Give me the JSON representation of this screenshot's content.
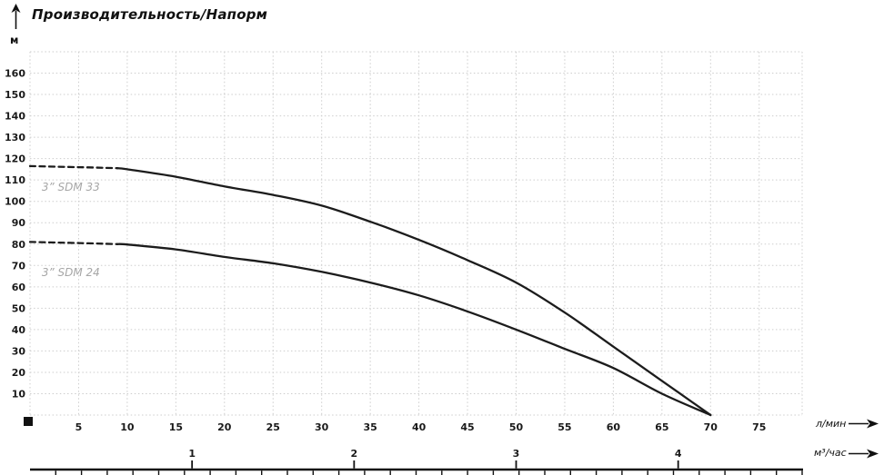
{
  "chart_data": {
    "type": "line",
    "title": "Производительность/Напорм",
    "ylabel": "м",
    "xlabel_primary": "л/мин",
    "xlabel_secondary": "м³/час",
    "x_range_lmin": [
      0,
      80
    ],
    "y_range_m": [
      0,
      170
    ],
    "grid": true,
    "y_ticks_m": [
      10,
      20,
      30,
      40,
      50,
      60,
      70,
      80,
      90,
      100,
      110,
      120,
      130,
      140,
      150,
      160
    ],
    "x_ticks_lmin": [
      5,
      10,
      15,
      20,
      25,
      30,
      35,
      40,
      45,
      50,
      55,
      60,
      65,
      70,
      75
    ],
    "x_ticks_m3h": [
      1,
      2,
      3,
      4
    ],
    "lmin_per_m3h": 16.667,
    "series": [
      {
        "name": "3” SDM 33",
        "dash_end_lmin": 9,
        "label_pos_lmin_m": [
          1.2,
          105
        ],
        "points_lmin_m": [
          [
            0,
            116.5
          ],
          [
            5,
            116
          ],
          [
            9,
            115.5
          ],
          [
            10,
            115
          ],
          [
            15,
            111.5
          ],
          [
            20,
            107
          ],
          [
            25,
            103
          ],
          [
            30,
            98
          ],
          [
            35,
            90.5
          ],
          [
            40,
            82
          ],
          [
            45,
            72.5
          ],
          [
            50,
            62
          ],
          [
            55,
            48
          ],
          [
            60,
            32
          ],
          [
            65,
            16
          ],
          [
            70,
            0
          ]
        ]
      },
      {
        "name": "3” SDM 24",
        "dash_end_lmin": 9,
        "label_pos_lmin_m": [
          1.2,
          65
        ],
        "points_lmin_m": [
          [
            0,
            81
          ],
          [
            5,
            80.5
          ],
          [
            9,
            80
          ],
          [
            10,
            79.8
          ],
          [
            15,
            77.5
          ],
          [
            20,
            74
          ],
          [
            25,
            71
          ],
          [
            30,
            67
          ],
          [
            35,
            62
          ],
          [
            40,
            56
          ],
          [
            45,
            48.5
          ],
          [
            50,
            40
          ],
          [
            55,
            31
          ],
          [
            60,
            22
          ],
          [
            65,
            10
          ],
          [
            70,
            0
          ]
        ]
      }
    ]
  },
  "colors": {
    "curve": "#1c1c1c",
    "grid": "#cdcdcd",
    "tick_text": "#1a1a1a",
    "series_label": "#a6a6a6",
    "axis_line": "#111111"
  }
}
